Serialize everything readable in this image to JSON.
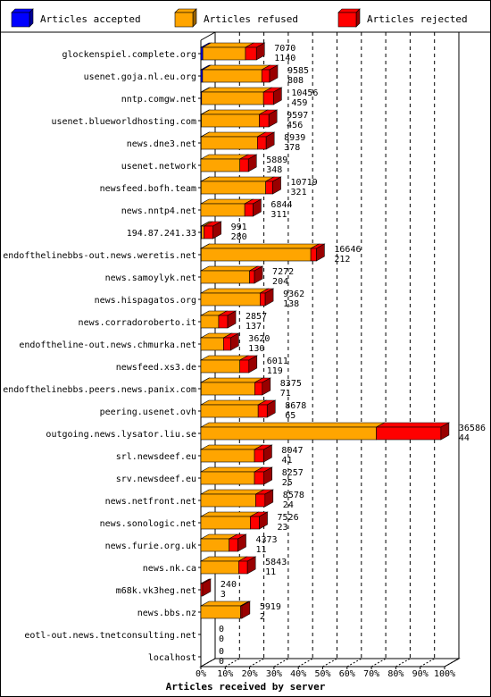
{
  "legend": [
    {
      "label": "Articles accepted",
      "color": "#0000ff"
    },
    {
      "label": "Articles refused",
      "color": "#ffa500"
    },
    {
      "label": "Articles rejected",
      "color": "#ff0000"
    }
  ],
  "chart_data": {
    "type": "bar",
    "orientation": "horizontal",
    "stacked": true,
    "xlabel": "Articles received by server",
    "x_ticks": [
      "0%",
      "10%",
      "20%",
      "30%",
      "40%",
      "50%",
      "60%",
      "70%",
      "80%",
      "90%",
      "100%"
    ],
    "xlim": [
      0,
      100
    ],
    "grid": true,
    "legend_position": "top",
    "categories": [
      "glockenspiel.complete.org",
      "usenet.goja.nl.eu.org",
      "nntp.comgw.net",
      "usenet.blueworldhosting.com",
      "news.dne3.net",
      "usenet.network",
      "newsfeed.bofh.team",
      "news.nntp4.net",
      "194.87.241.33",
      "endofthelinebbs-out.news.weretis.net",
      "news.samoylyk.net",
      "news.hispagatos.org",
      "news.corradoroberto.it",
      "endoftheline-out.news.chmurka.net",
      "newsfeed.xs3.de",
      "endofthelinebbs.peers.news.panix.com",
      "peering.usenet.ovh",
      "outgoing.news.lysator.liu.se",
      "srl.newsdeef.eu",
      "srv.newsdeef.eu",
      "news.netfront.net",
      "news.sonologic.net",
      "news.furie.org.uk",
      "news.nk.ca",
      "m68k.vk3heg.net",
      "news.bbs.nz",
      "eotl-out.news.tnetconsulting.net",
      "localhost"
    ],
    "labels_top": [
      "7070",
      "9585",
      "10456",
      "9597",
      "8939",
      "5889",
      "10719",
      "6844",
      "991",
      "16646",
      "7272",
      "9362",
      "2857",
      "3620",
      "6011",
      "8375",
      "8678",
      "36586",
      "8047",
      "8257",
      "8578",
      "7526",
      "4373",
      "5843",
      "240",
      "5919",
      "0",
      "0"
    ],
    "labels_bottom": [
      "1140",
      "808",
      "459",
      "456",
      "378",
      "348",
      "321",
      "311",
      "280",
      "212",
      "204",
      "138",
      "137",
      "130",
      "119",
      "71",
      "65",
      "44",
      "41",
      "25",
      "24",
      "23",
      "11",
      "11",
      "3",
      "2",
      "0",
      "0"
    ],
    "series": [
      {
        "name": "Articles accepted",
        "color": "#0000ff",
        "values": [
          0.8,
          0.7,
          0.3,
          0.2,
          0.1,
          0,
          0.1,
          0,
          0.3,
          0.1,
          0,
          0,
          0,
          0,
          0,
          0.1,
          0,
          0,
          0,
          0,
          0,
          0,
          0,
          0,
          0,
          0,
          0,
          0
        ]
      },
      {
        "name": "Articles refused",
        "color": "#ffa500",
        "values": [
          17.5,
          24.3,
          25.4,
          23.8,
          23.1,
          16.0,
          26.5,
          18.0,
          1.0,
          45.0,
          20.0,
          24.3,
          7.3,
          9.3,
          16.0,
          22.0,
          23.5,
          72.0,
          22.0,
          22.0,
          22.5,
          20.3,
          11.6,
          15.5,
          0,
          16.3,
          0,
          0
        ]
      },
      {
        "name": "Articles rejected",
        "color": "#ff0000",
        "values": [
          4.5,
          3.2,
          4.1,
          3.9,
          3.6,
          3.5,
          2.9,
          3.4,
          3.7,
          2.3,
          2.0,
          2.1,
          3.7,
          2.9,
          3.7,
          3.1,
          3.7,
          26.5,
          3.8,
          3.9,
          3.8,
          3.7,
          3.6,
          3.6,
          0.7,
          0.5,
          0,
          0
        ]
      }
    ]
  }
}
